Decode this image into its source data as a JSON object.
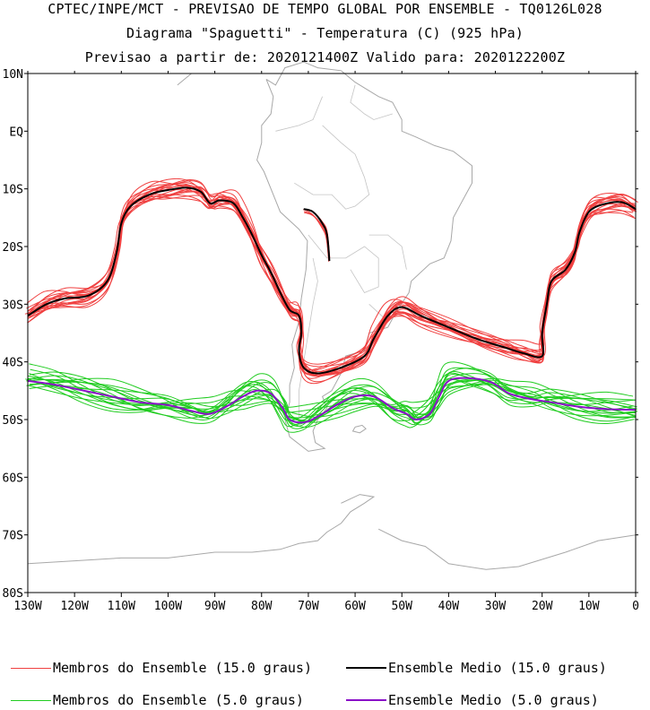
{
  "titles": {
    "line1": "CPTEC/INPE/MCT - PREVISAO DE TEMPO GLOBAL POR ENSEMBLE - TQ0126L028",
    "line2": "Diagrama \"Spaguetti\" - Temperatura (C) (925 hPa)",
    "line3": "Previsao a partir de: 2020121400Z  Valido para: 2020122200Z"
  },
  "colors": {
    "members_15": "#f04040",
    "mean_15": "#000000",
    "members_5": "#20cc20",
    "mean_5": "#8a10c8",
    "coast": "#a8a8a8"
  },
  "legend": [
    {
      "label": "Membros do Ensemble (15.0 graus)",
      "color": "#f04040",
      "width": 1
    },
    {
      "label": "Ensemble Medio (15.0 graus)",
      "color": "#000000",
      "width": 2
    },
    {
      "label": "Membros do Ensemble (5.0 graus)",
      "color": "#20cc20",
      "width": 1
    },
    {
      "label": "Ensemble Medio (5.0 graus)",
      "color": "#8a10c8",
      "width": 2
    }
  ],
  "chart_data": {
    "type": "line",
    "xlim": [
      -130,
      0
    ],
    "ylim": [
      -80,
      10
    ],
    "xticks": [
      -130,
      -120,
      -110,
      -100,
      -90,
      -80,
      -70,
      -60,
      -50,
      -40,
      -30,
      -20,
      -10,
      0
    ],
    "xtick_labels": [
      "130W",
      "120W",
      "110W",
      "100W",
      "90W",
      "80W",
      "70W",
      "60W",
      "50W",
      "40W",
      "30W",
      "20W",
      "10W",
      "0"
    ],
    "yticks": [
      10,
      0,
      -10,
      -20,
      -30,
      -40,
      -50,
      -60,
      -70,
      -80
    ],
    "ytick_labels": [
      "10N",
      "EQ",
      "10S",
      "20S",
      "30S",
      "40S",
      "50S",
      "60S",
      "70S",
      "80S"
    ],
    "series": [
      {
        "name": "Ensemble Medio (15.0 graus)",
        "points": [
          [
            -130,
            -32
          ],
          [
            -126,
            -30
          ],
          [
            -122,
            -29
          ],
          [
            -117,
            -28.5
          ],
          [
            -113,
            -26
          ],
          [
            -111,
            -21
          ],
          [
            -110,
            -16
          ],
          [
            -108,
            -13
          ],
          [
            -104,
            -11
          ],
          [
            -100,
            -10.2
          ],
          [
            -96,
            -9.8
          ],
          [
            -93,
            -10.5
          ],
          [
            -91,
            -12.5
          ],
          [
            -89,
            -12
          ],
          [
            -86,
            -12.5
          ],
          [
            -84,
            -15
          ],
          [
            -82,
            -18
          ],
          [
            -80,
            -21.5
          ],
          [
            -78,
            -24.5
          ],
          [
            -76,
            -28
          ],
          [
            -74,
            -31
          ],
          [
            -72,
            -32
          ],
          [
            -71.5,
            -35
          ],
          [
            -72,
            -38
          ],
          [
            -71,
            -41
          ],
          [
            -68,
            -42
          ],
          [
            -63,
            -41
          ],
          [
            -58,
            -39
          ],
          [
            -56,
            -36
          ],
          [
            -53,
            -32
          ],
          [
            -50,
            -30.5
          ],
          [
            -46,
            -32
          ],
          [
            -40,
            -34
          ],
          [
            -34,
            -36
          ],
          [
            -28,
            -37.5
          ],
          [
            -24,
            -38.5
          ],
          [
            -20,
            -39
          ],
          [
            -20,
            -35
          ],
          [
            -19,
            -30
          ],
          [
            -18,
            -26
          ],
          [
            -15,
            -24
          ],
          [
            -13,
            -21
          ],
          [
            -12,
            -17.5
          ],
          [
            -10,
            -14
          ],
          [
            -7,
            -12.7
          ],
          [
            -3,
            -12.3
          ],
          [
            0,
            -13.5
          ]
        ]
      },
      {
        "name": "",
        "points": [
          [
            -71,
            -13.5
          ],
          [
            -69,
            -14
          ],
          [
            -67,
            -16
          ],
          [
            -66,
            -18
          ],
          [
            -65.5,
            -22.5
          ]
        ]
      },
      {
        "name": "Ensemble Medio (5.0 graus)",
        "points": [
          [
            -130,
            -43.3
          ],
          [
            -124,
            -44
          ],
          [
            -118,
            -45
          ],
          [
            -112,
            -46
          ],
          [
            -106,
            -47
          ],
          [
            -100,
            -47.5
          ],
          [
            -95,
            -48.5
          ],
          [
            -91,
            -49
          ],
          [
            -87,
            -47.5
          ],
          [
            -84,
            -46
          ],
          [
            -81,
            -45
          ],
          [
            -78,
            -45.5
          ],
          [
            -75.5,
            -48
          ],
          [
            -74,
            -50
          ],
          [
            -71,
            -50.5
          ],
          [
            -68,
            -49.5
          ],
          [
            -64,
            -47.5
          ],
          [
            -60,
            -46
          ],
          [
            -56,
            -46
          ],
          [
            -52,
            -48
          ],
          [
            -49,
            -49
          ],
          [
            -47,
            -50
          ],
          [
            -44,
            -49
          ],
          [
            -42,
            -46
          ],
          [
            -40,
            -43.3
          ],
          [
            -36,
            -42.8
          ],
          [
            -31,
            -43.5
          ],
          [
            -27,
            -45.5
          ],
          [
            -22,
            -46.5
          ],
          [
            -18,
            -47
          ],
          [
            -12,
            -47.8
          ],
          [
            -6,
            -48.2
          ],
          [
            0,
            -48.3
          ]
        ]
      }
    ],
    "annotations": []
  }
}
